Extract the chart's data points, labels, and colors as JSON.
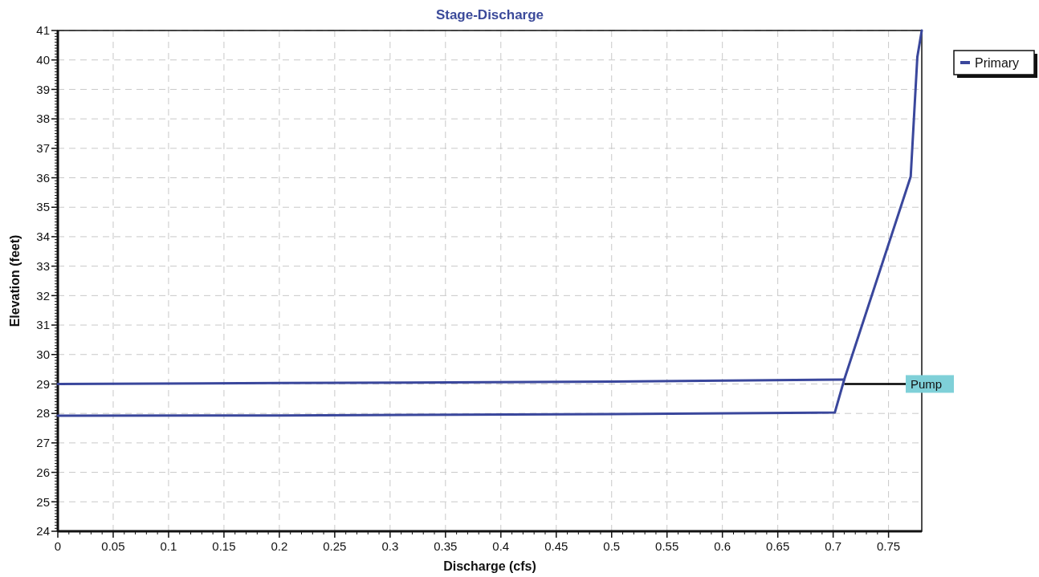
{
  "chart_data": {
    "type": "line",
    "title": "Stage-Discharge",
    "xlabel": "Discharge  (cfs)",
    "ylabel": "Elevation  (feet)",
    "series": [
      {
        "name": "Primary",
        "color": "#3a479c",
        "x": [
          0,
          0.2,
          0.5,
          0.7015,
          0.71,
          0.77,
          0.776,
          0.78
        ],
        "values": [
          27.92,
          27.93,
          27.98,
          28.03,
          29.15,
          36.04,
          40.1,
          41
        ]
      },
      {
        "color": "#3a479c",
        "x": [
          0,
          0.2,
          0.5,
          0.71
        ],
        "values": [
          29.0,
          29.03,
          29.08,
          29.15
        ]
      }
    ],
    "xlim": [
      0,
      0.78
    ],
    "xticks": [
      0,
      0.05,
      0.1,
      0.15,
      0.2,
      0.25,
      0.3,
      0.35,
      0.4,
      0.45,
      0.5,
      0.55,
      0.6,
      0.65,
      0.7,
      0.75
    ],
    "ylim": [
      24,
      41
    ],
    "yticks": [
      24,
      25,
      26,
      27,
      28,
      29,
      30,
      31,
      32,
      33,
      34,
      35,
      36,
      37,
      38,
      39,
      40,
      41
    ],
    "ref_lines": [
      {
        "axis": "y",
        "value": 29,
        "label": "Pump",
        "color": "#000000"
      }
    ],
    "grid": true,
    "legend": "top right",
    "marker": "none",
    "line_style": "solid"
  }
}
